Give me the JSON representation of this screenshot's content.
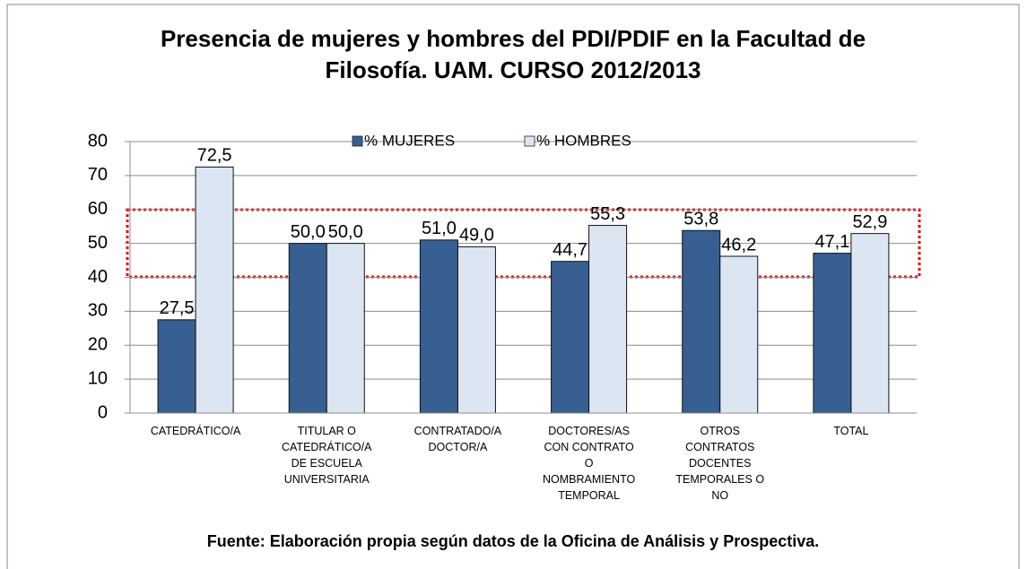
{
  "chart_data": {
    "type": "bar",
    "title": [
      "Presencia de mujeres y hombres del PDI/PDIF en la Facultad de",
      "Filosofía. UAM. CURSO 2012/2013"
    ],
    "categories": [
      "CATEDRÁTICO/A",
      "TITULAR O CATEDRÁTICO/A DE ESCUELA UNIVERSITARIA",
      "CONTRATADO/A DOCTOR/A",
      "DOCTORES/AS CON CONTRATO O NOMBRAMIENTO TEMPORAL",
      "OTROS CONTRATOS DOCENTES TEMPORALES O NO",
      "TOTAL"
    ],
    "series": [
      {
        "name": "% MUJERES",
        "color": "#375f91",
        "values": [
          27.5,
          50.0,
          51.0,
          44.7,
          53.8,
          47.1
        ],
        "value_labels": [
          "27,5",
          "50,0",
          "51,0",
          "44,7",
          "53,8",
          "47,1"
        ]
      },
      {
        "name": "% HOMBRES",
        "color": "#dce6f2",
        "values": [
          72.5,
          50.0,
          49.0,
          55.3,
          46.2,
          52.9
        ],
        "value_labels": [
          "72,5",
          "50,0",
          "49,0",
          "55,3",
          "46,2",
          "52,9"
        ]
      }
    ],
    "ylim": [
      0,
      80
    ],
    "yticks": [
      0,
      10,
      20,
      30,
      40,
      50,
      60,
      70,
      80
    ],
    "grid": true,
    "legend": "top",
    "footnote": "Fuente: Elaboración propia según datos de la Oficina de Análisis y Prospectiva."
  }
}
